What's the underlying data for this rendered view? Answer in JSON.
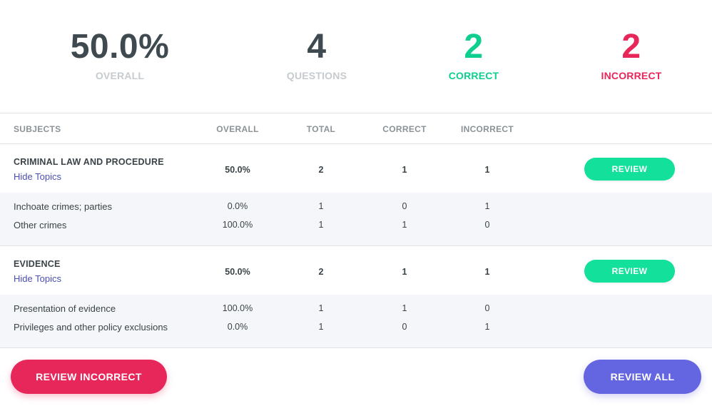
{
  "colors": {
    "correct": "#0ecf8f",
    "incorrect": "#e7275a",
    "review_button": "#13e09a",
    "review_all_button": "#6366e0",
    "link": "#4a4fb2",
    "topic_background": "#f4f6f9"
  },
  "stats": {
    "overall": {
      "value": "50.0%",
      "label": "OVERALL"
    },
    "questions": {
      "value": "4",
      "label": "QUESTIONS"
    },
    "correct": {
      "value": "2",
      "label": "CORRECT"
    },
    "incorrect": {
      "value": "2",
      "label": "INCORRECT"
    }
  },
  "table": {
    "headers": {
      "subjects": "SUBJECTS",
      "overall": "OVERALL",
      "total": "TOTAL",
      "correct": "CORRECT",
      "incorrect": "INCORRECT"
    },
    "subjects": [
      {
        "name": "CRIMINAL LAW AND PROCEDURE",
        "toggle_label": "Hide Topics",
        "overall": "50.0%",
        "total": "2",
        "correct": "1",
        "incorrect": "1",
        "review_label": "REVIEW",
        "topics": [
          {
            "name": "Inchoate crimes; parties",
            "overall": "0.0%",
            "total": "1",
            "correct": "0",
            "incorrect": "1"
          },
          {
            "name": "Other crimes",
            "overall": "100.0%",
            "total": "1",
            "correct": "1",
            "incorrect": "0"
          }
        ]
      },
      {
        "name": "EVIDENCE",
        "toggle_label": "Hide Topics",
        "overall": "50.0%",
        "total": "2",
        "correct": "1",
        "incorrect": "1",
        "review_label": "REVIEW",
        "topics": [
          {
            "name": "Presentation of evidence",
            "overall": "100.0%",
            "total": "1",
            "correct": "1",
            "incorrect": "0"
          },
          {
            "name": "Privileges and other policy exclusions",
            "overall": "0.0%",
            "total": "1",
            "correct": "0",
            "incorrect": "1"
          }
        ]
      }
    ]
  },
  "footer": {
    "review_incorrect_label": "REVIEW INCORRECT",
    "review_all_label": "REVIEW ALL"
  }
}
